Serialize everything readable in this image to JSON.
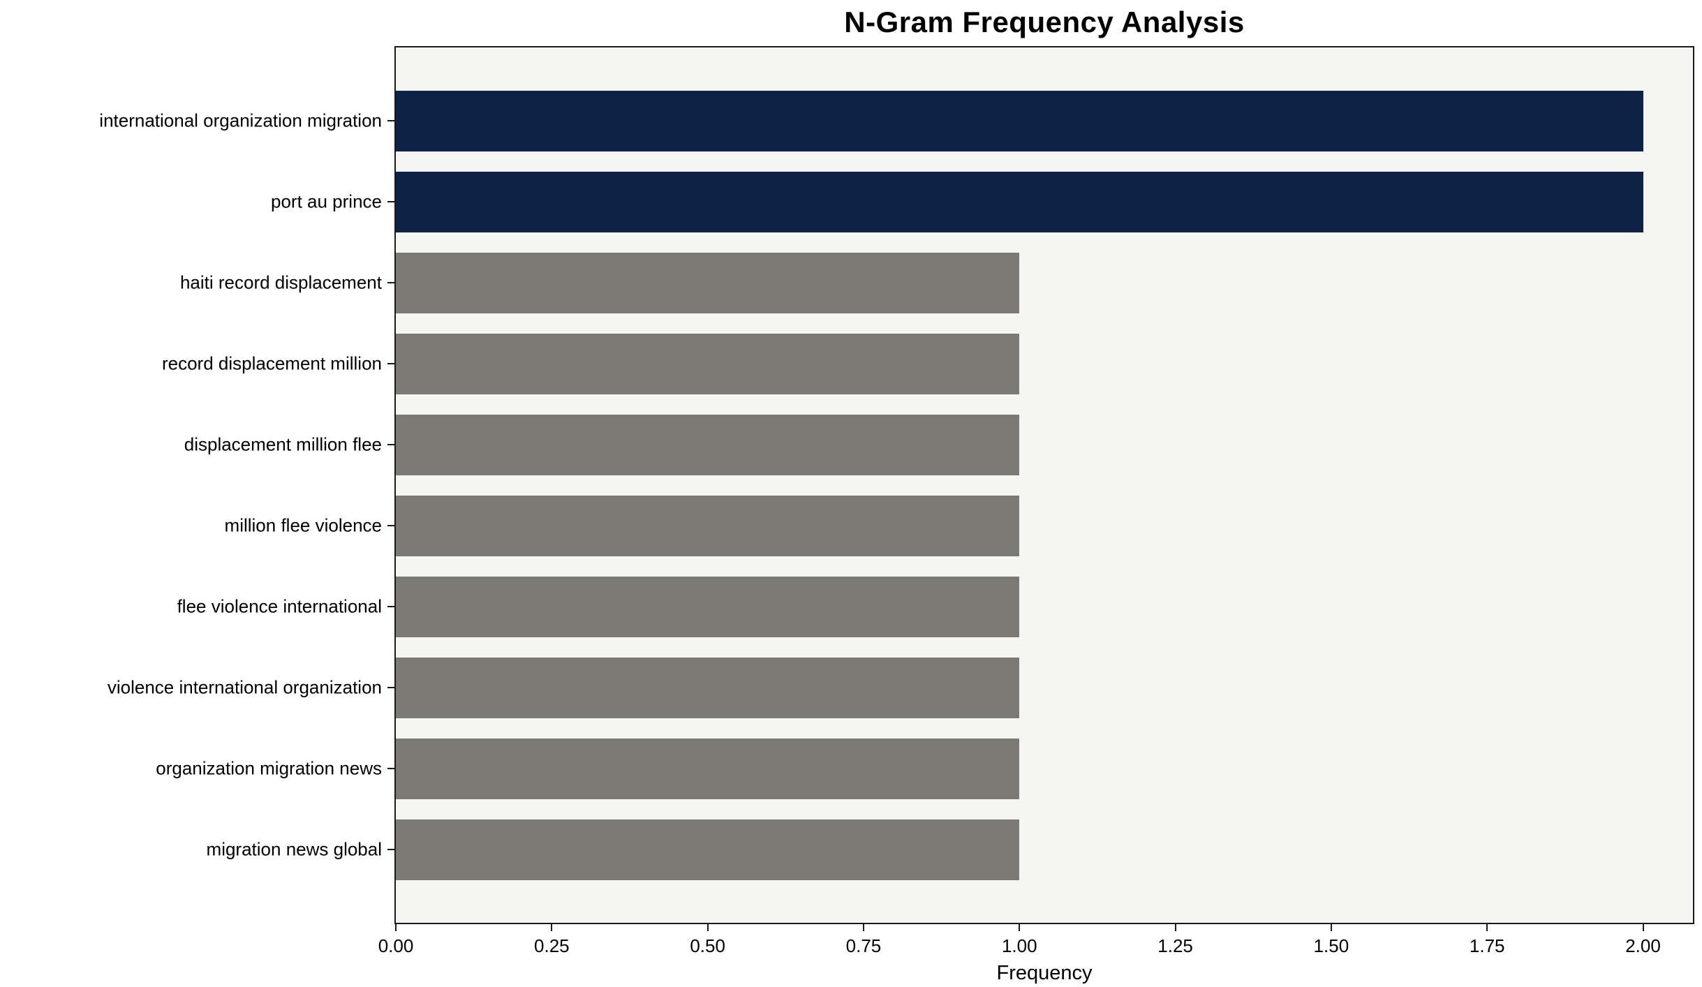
{
  "chart_data": {
    "type": "bar",
    "orientation": "horizontal",
    "title": "N-Gram Frequency Analysis",
    "xlabel": "Frequency",
    "ylabel": "",
    "categories": [
      "international organization migration",
      "port au prince",
      "haiti record displacement",
      "record displacement million",
      "displacement million flee",
      "million flee violence",
      "flee violence international",
      "violence international organization",
      "organization migration news",
      "migration news global"
    ],
    "values": [
      2,
      2,
      1,
      1,
      1,
      1,
      1,
      1,
      1,
      1
    ],
    "colors": [
      "#0e2246",
      "#0e2246",
      "#7c7a75",
      "#7c7a75",
      "#7c7a75",
      "#7c7a75",
      "#7c7a75",
      "#7c7a75",
      "#7c7a75",
      "#7c7a75"
    ],
    "highlight_color": "#0e2246",
    "default_color": "#7c7a75",
    "xlim": [
      0,
      2.08
    ],
    "xticks": [
      0,
      0.25,
      0.5,
      0.75,
      1,
      1.25,
      1.5,
      1.75,
      2
    ],
    "xtick_labels": [
      "0.00",
      "0.25",
      "0.50",
      "0.75",
      "1.00",
      "1.25",
      "1.50",
      "1.75",
      "2.00"
    ],
    "plot_background": "#f5f5f4",
    "grid": false,
    "legend": null
  }
}
